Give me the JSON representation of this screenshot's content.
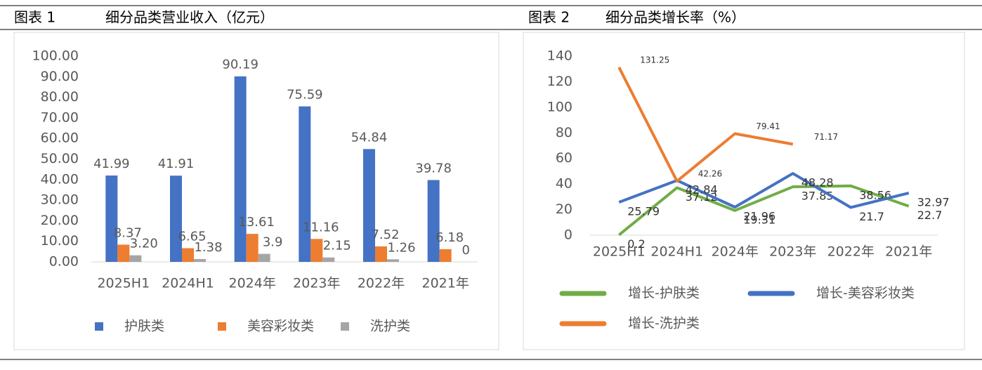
{
  "chart_data": [
    {
      "type": "bar",
      "figure_label": "图表 1",
      "title": "细分品类营业收入（亿元）",
      "categories": [
        "2025H1",
        "2024H1",
        "2024年",
        "2023年",
        "2022年",
        "2021年"
      ],
      "series": [
        {
          "name": "护肤类",
          "color": "#4472c4",
          "values": [
            41.99,
            41.91,
            90.19,
            75.59,
            54.84,
            39.78
          ]
        },
        {
          "name": "美容彩妆类",
          "color": "#ed7d31",
          "values": [
            8.37,
            6.65,
            13.61,
            11.16,
            7.52,
            6.18
          ]
        },
        {
          "name": "洗护类",
          "color": "#a5a5a5",
          "values": [
            3.2,
            1.38,
            3.9,
            2.15,
            1.26,
            0
          ],
          "value_labels": [
            "3.20",
            "1.38",
            "3.9",
            "2.15",
            "1.26",
            "0"
          ]
        }
      ],
      "ylim": [
        0,
        100
      ],
      "yticks": [
        {
          "value": 0,
          "label": "0.00"
        },
        {
          "value": 10,
          "label": "10.00"
        },
        {
          "value": 20,
          "label": "20.00"
        },
        {
          "value": 30,
          "label": "30.00"
        },
        {
          "value": 40,
          "label": "40.00"
        },
        {
          "value": 50,
          "label": "50.00"
        },
        {
          "value": 60,
          "label": "60.00"
        },
        {
          "value": 70,
          "label": "70.00"
        },
        {
          "value": 80,
          "label": "80.00"
        },
        {
          "value": 90,
          "label": "90.00"
        },
        {
          "value": 100,
          "label": "100.00"
        }
      ],
      "legend": "bottom"
    },
    {
      "type": "line",
      "figure_label": "图表 2",
      "title": "细分品类增长率（%）",
      "categories": [
        "2025H1",
        "2024H1",
        "2024年",
        "2023年",
        "2022年",
        "2021年"
      ],
      "series": [
        {
          "name": "增长-护肤类",
          "color": "#70ad47",
          "values": [
            0.2,
            37.12,
            19.31,
            37.85,
            38.56,
            22.7
          ]
        },
        {
          "name": "增长-美容彩妆类",
          "color": "#4472c4",
          "values": [
            25.79,
            42.84,
            21.96,
            48.28,
            21.7,
            32.97
          ]
        },
        {
          "name": "增长-洗护类",
          "color": "#ed7d31",
          "values": [
            131.25,
            42.26,
            79.41,
            71.17,
            null,
            null
          ]
        }
      ],
      "ylim": [
        0,
        140
      ],
      "yticks": [
        0,
        20,
        40,
        60,
        80,
        100,
        120,
        140
      ],
      "legend": "bottom"
    }
  ]
}
